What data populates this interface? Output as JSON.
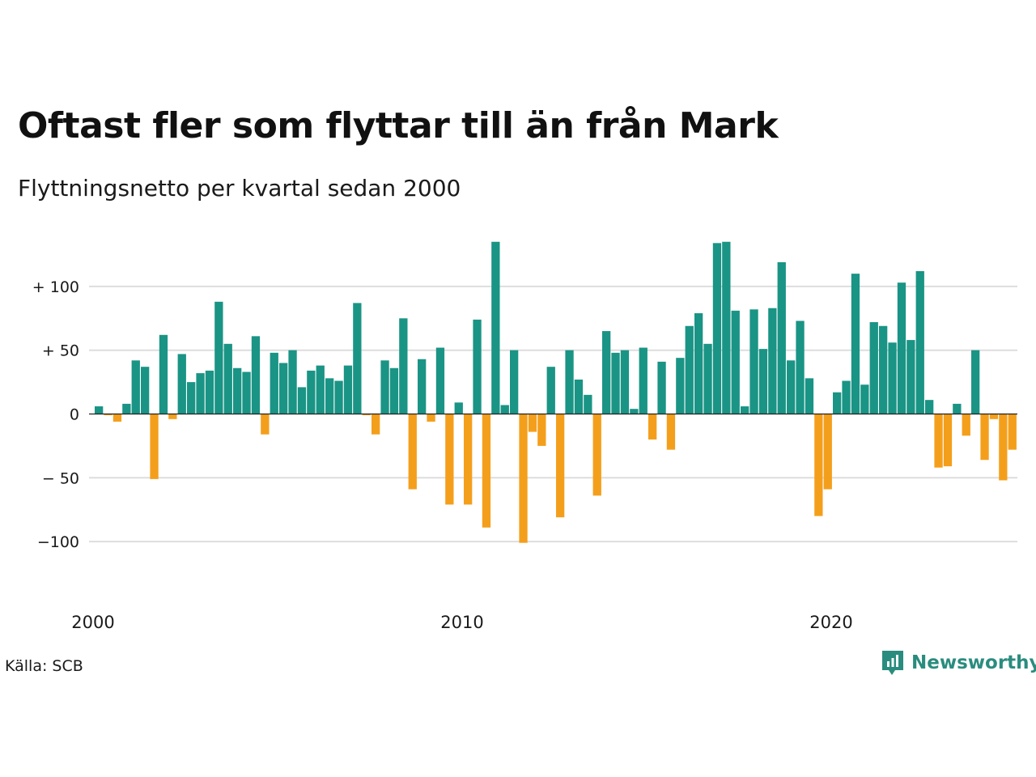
{
  "title": "Oftast fler som flyttar till än från Mark",
  "subtitle": "Flyttningsnetto per kvartal sedan 2000",
  "source": "Källa: SCB",
  "brand": "Newsworthy",
  "colors": {
    "positive": "#1a9485",
    "negative": "#f49f1c",
    "grid": "#dddddd",
    "zero_line": "#222222",
    "brand": "#2a8c7e"
  },
  "chart_data": {
    "type": "bar",
    "x_start": "2000 Q1",
    "x_ticks": [
      {
        "value": 2000,
        "label": "2000"
      },
      {
        "value": 2010,
        "label": "2010"
      },
      {
        "value": 2020,
        "label": "2020"
      }
    ],
    "y_ticks": [
      {
        "value": 100,
        "label": "+ 100"
      },
      {
        "value": 50,
        "label": "+  50"
      },
      {
        "value": 0,
        "label": "0"
      },
      {
        "value": -50,
        "label": "− 50"
      },
      {
        "value": -100,
        "label": "−100"
      }
    ],
    "ylim": [
      -120,
      140
    ],
    "grid": true,
    "values": [
      6,
      -1,
      -6,
      8,
      42,
      37,
      -51,
      62,
      -4,
      47,
      25,
      32,
      34,
      88,
      55,
      36,
      33,
      61,
      -16,
      48,
      40,
      50,
      21,
      34,
      38,
      28,
      26,
      38,
      87,
      -1,
      -16,
      42,
      36,
      75,
      -59,
      43,
      -6,
      52,
      -71,
      9,
      -71,
      74,
      -89,
      135,
      7,
      50,
      -101,
      -14,
      -25,
      37,
      -81,
      50,
      27,
      15,
      -64,
      65,
      48,
      50,
      4,
      52,
      -20,
      41,
      -28,
      44,
      69,
      79,
      55,
      134,
      135,
      81,
      6,
      82,
      51,
      83,
      119,
      42,
      73,
      28,
      -80,
      -59,
      17,
      26,
      110,
      23,
      72,
      69,
      56,
      103,
      58,
      112,
      11,
      -42,
      -41,
      8,
      -17,
      50,
      -36,
      -4,
      -52,
      -28
    ]
  }
}
